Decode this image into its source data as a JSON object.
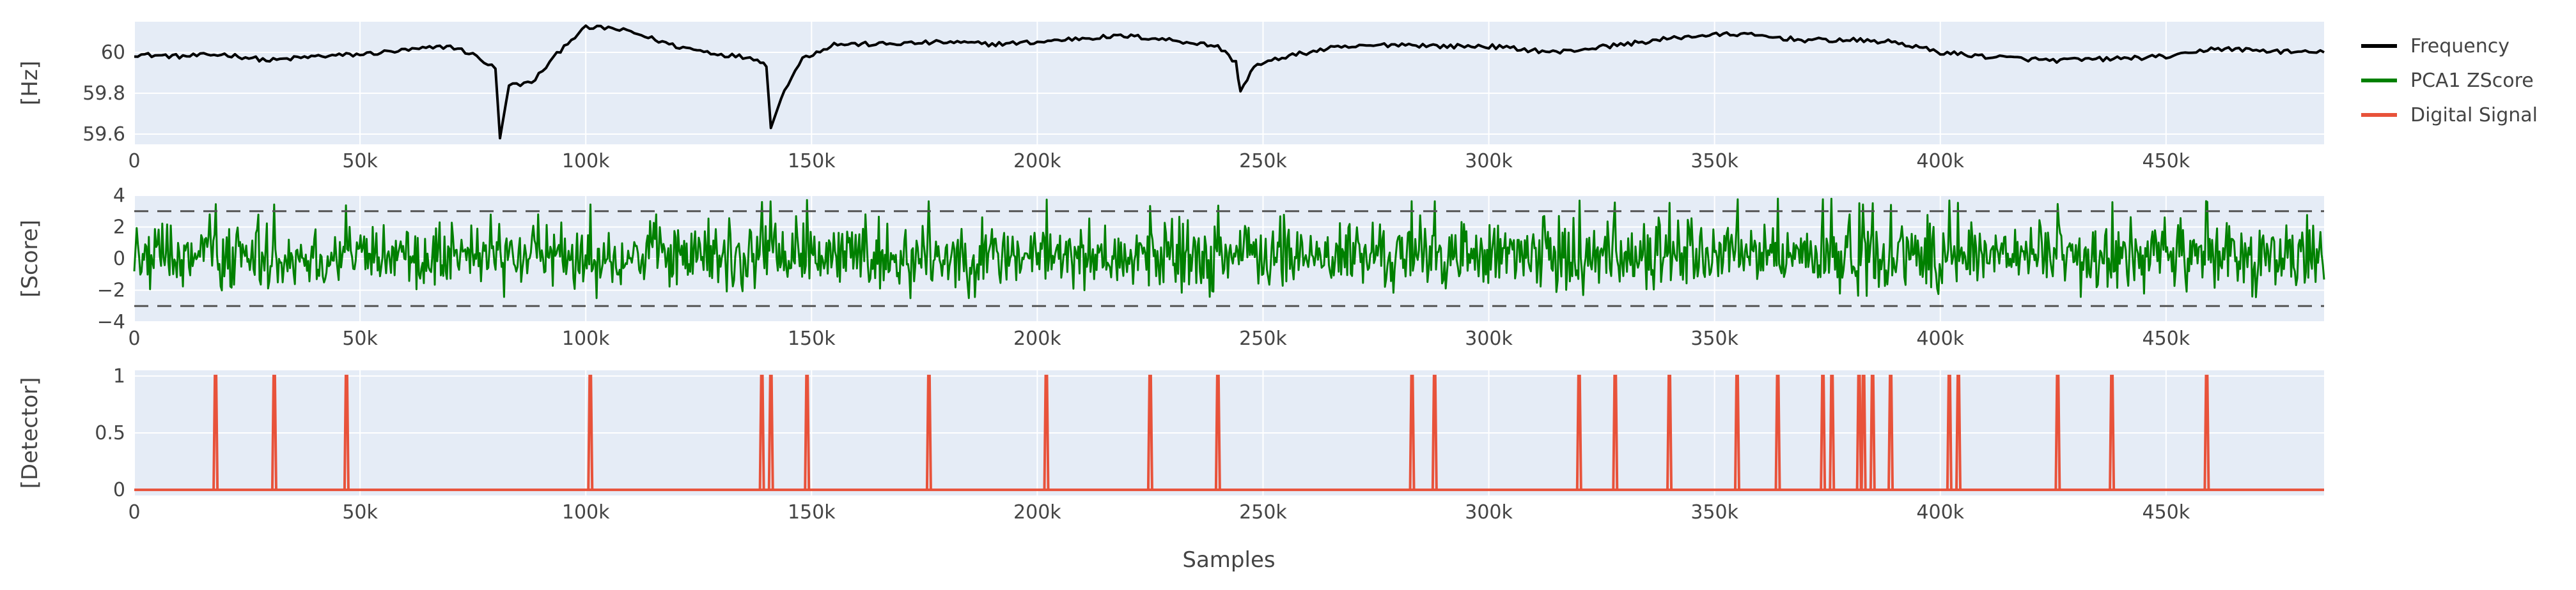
{
  "figure": {
    "legend_placement": "top-right, outside plot area",
    "plot_background": "#e5ecf6",
    "grid": true
  },
  "legend": [
    {
      "name": "Frequency",
      "color": "#000000"
    },
    {
      "name": "PCA1 ZScore",
      "color": "#008000"
    },
    {
      "name": "Digital Signal",
      "color": "#e8523a"
    }
  ],
  "chart_data": [
    {
      "type": "line",
      "series_name": "Frequency",
      "color": "#000000",
      "ylabel": "[Hz]",
      "xlim": [
        0,
        485000
      ],
      "ylim": [
        59.55,
        60.15
      ],
      "x_ticks": [
        0,
        50000,
        100000,
        150000,
        200000,
        250000,
        300000,
        350000,
        400000,
        450000
      ],
      "x_tick_labels": [
        "0",
        "50k",
        "100k",
        "150k",
        "200k",
        "250k",
        "300k",
        "350k",
        "400k",
        "450k"
      ],
      "y_ticks": [
        59.6,
        59.8,
        60.0
      ],
      "y_tick_labels": [
        "59.6",
        "59.8",
        "60"
      ],
      "keypoints": [
        [
          0,
          59.99
        ],
        [
          10000,
          59.98
        ],
        [
          20000,
          59.99
        ],
        [
          30000,
          59.96
        ],
        [
          40000,
          59.98
        ],
        [
          50000,
          59.99
        ],
        [
          60000,
          60.01
        ],
        [
          70000,
          60.03
        ],
        [
          75000,
          59.99
        ],
        [
          80000,
          59.92
        ],
        [
          81000,
          59.58
        ],
        [
          83000,
          59.84
        ],
        [
          88000,
          59.85
        ],
        [
          92000,
          59.95
        ],
        [
          96000,
          60.05
        ],
        [
          100000,
          60.12
        ],
        [
          105000,
          60.12
        ],
        [
          110000,
          60.1
        ],
        [
          120000,
          60.03
        ],
        [
          130000,
          59.99
        ],
        [
          138000,
          59.97
        ],
        [
          140000,
          59.93
        ],
        [
          141000,
          59.63
        ],
        [
          144000,
          59.82
        ],
        [
          148000,
          59.97
        ],
        [
          155000,
          60.04
        ],
        [
          165000,
          60.04
        ],
        [
          180000,
          60.05
        ],
        [
          190000,
          60.04
        ],
        [
          200000,
          60.05
        ],
        [
          210000,
          60.07
        ],
        [
          220000,
          60.08
        ],
        [
          230000,
          60.06
        ],
        [
          240000,
          60.03
        ],
        [
          244000,
          59.95
        ],
        [
          245000,
          59.81
        ],
        [
          248000,
          59.93
        ],
        [
          255000,
          59.98
        ],
        [
          265000,
          60.02
        ],
        [
          280000,
          60.04
        ],
        [
          290000,
          60.03
        ],
        [
          300000,
          60.03
        ],
        [
          315000,
          60.0
        ],
        [
          330000,
          60.04
        ],
        [
          345000,
          60.08
        ],
        [
          355000,
          60.09
        ],
        [
          370000,
          60.06
        ],
        [
          380000,
          60.06
        ],
        [
          390000,
          60.05
        ],
        [
          400000,
          60.0
        ],
        [
          410000,
          59.98
        ],
        [
          425000,
          59.96
        ],
        [
          440000,
          59.97
        ],
        [
          450000,
          59.98
        ],
        [
          455000,
          59.99
        ],
        [
          460000,
          60.02
        ],
        [
          470000,
          60.01
        ],
        [
          480000,
          60.0
        ],
        [
          485000,
          60.0
        ]
      ]
    },
    {
      "type": "line",
      "series_name": "PCA1 ZScore",
      "color": "#008000",
      "ylabel": "[Score]",
      "xlim": [
        0,
        485000
      ],
      "ylim": [
        -4,
        4
      ],
      "x_ticks": [
        0,
        50000,
        100000,
        150000,
        200000,
        250000,
        300000,
        350000,
        400000,
        450000
      ],
      "x_tick_labels": [
        "0",
        "50k",
        "100k",
        "150k",
        "200k",
        "250k",
        "300k",
        "350k",
        "400k",
        "450k"
      ],
      "y_ticks": [
        -4,
        -2,
        0,
        2,
        4
      ],
      "y_tick_labels": [
        "−4",
        "−2",
        "0",
        "2",
        "4"
      ],
      "threshold_lines": [
        3,
        -3
      ],
      "value_range": [
        -2.5,
        3.8
      ],
      "peaks_x": [
        18000,
        31000,
        47000,
        101000,
        139000,
        141000,
        149000,
        176000,
        202000,
        225000,
        240000,
        283000,
        288000,
        320000,
        328000,
        340000,
        355000,
        364000,
        374000,
        376000,
        382000,
        383000,
        385000,
        389000,
        402000,
        404000,
        426000,
        438000,
        459000
      ]
    },
    {
      "type": "line",
      "series_name": "Digital Signal",
      "color": "#e8523a",
      "ylabel": "[Detector]",
      "xlabel": "Samples",
      "xlim": [
        0,
        485000
      ],
      "ylim": [
        -0.05,
        1.05
      ],
      "x_ticks": [
        0,
        50000,
        100000,
        150000,
        200000,
        250000,
        300000,
        350000,
        400000,
        450000
      ],
      "x_tick_labels": [
        "0",
        "50k",
        "100k",
        "150k",
        "200k",
        "250k",
        "300k",
        "350k",
        "400k",
        "450k"
      ],
      "y_ticks": [
        0,
        0.5,
        1
      ],
      "y_tick_labels": [
        "0",
        "0.5",
        "1"
      ],
      "pulses_x": [
        18000,
        31000,
        47000,
        101000,
        139000,
        141000,
        149000,
        176000,
        202000,
        225000,
        240000,
        283000,
        288000,
        320000,
        328000,
        340000,
        355000,
        364000,
        374000,
        376000,
        382000,
        383000,
        385000,
        389000,
        402000,
        404000,
        426000,
        438000,
        459000
      ]
    }
  ]
}
